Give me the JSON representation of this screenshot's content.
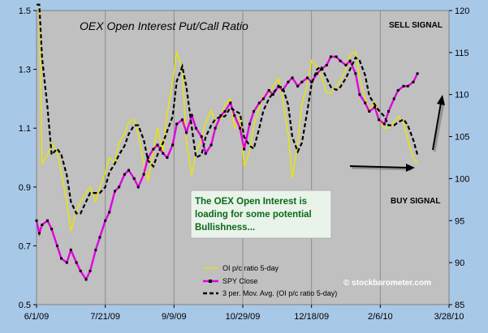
{
  "chart_data": {
    "type": "line",
    "title": "OEX Open Interest Put/Call Ratio",
    "annotations": {
      "sell_signal": "SELL SIGNAL",
      "buy_signal": "BUY SIGNAL",
      "callout_lines": [
        "The OEX Open Interest is",
        "loading for some potential",
        "Bullishness..."
      ],
      "watermark": "© stockbarometer.com"
    },
    "x_tick_labels": [
      "6/1/09",
      "7/21/09",
      "9/9/09",
      "10/29/09",
      "12/18/09",
      "2/6/10",
      "3/28/10"
    ],
    "y_left": {
      "ticks": [
        "0.5",
        "0.7",
        "0.9",
        "1.1",
        "1.3",
        "1.5"
      ],
      "lim": [
        0.5,
        1.5
      ]
    },
    "y_right": {
      "ticks": [
        "85",
        "90",
        "95",
        "100",
        "105",
        "110",
        "115",
        "120"
      ],
      "lim": [
        85,
        120
      ]
    },
    "grid": "vertical",
    "legend_position": "bottom-center",
    "colors": {
      "ratio": "#e8e800",
      "spy": "#e000e0",
      "mavg": "#000000",
      "plot_bg": "#c0c0c0",
      "frame_bg": "#a8c8e8",
      "callout_bg": "#eaf3ea"
    },
    "series": [
      {
        "name": "OI p/c ratio 5-day",
        "axis": "left",
        "x": [
          "6/1/09",
          "6/3/09",
          "6/5/09",
          "6/9/09",
          "6/12/09",
          "6/16/09",
          "6/19/09",
          "6/23/09",
          "6/26/09",
          "6/30/09",
          "7/3/09",
          "7/7/09",
          "7/10/09",
          "7/14/09",
          "7/17/09",
          "7/21/09",
          "7/24/09",
          "7/28/09",
          "7/31/09",
          "8/4/09",
          "8/7/09",
          "8/11/09",
          "8/14/09",
          "8/18/09",
          "8/21/09",
          "8/25/09",
          "8/28/09",
          "9/1/09",
          "9/4/09",
          "9/8/09",
          "9/11/09",
          "9/15/09",
          "9/18/09",
          "9/22/09",
          "9/25/09",
          "9/29/09",
          "10/2/09",
          "10/6/09",
          "10/9/09",
          "10/13/09",
          "10/16/09",
          "10/20/09",
          "10/23/09",
          "10/27/09",
          "10/30/09",
          "11/3/09",
          "11/6/09",
          "11/10/09",
          "11/13/09",
          "11/17/09",
          "11/20/09",
          "11/24/09",
          "11/27/09",
          "12/1/09",
          "12/4/09",
          "12/8/09",
          "12/11/09",
          "12/15/09",
          "12/18/09",
          "12/22/09",
          "12/25/09",
          "12/29/09",
          "1/1/10",
          "1/5/10",
          "1/8/10",
          "1/12/10",
          "1/15/10",
          "1/19/10",
          "1/22/10",
          "1/26/10",
          "1/29/10",
          "2/2/10",
          "2/5/10",
          "2/9/10",
          "2/12/10",
          "2/16/10",
          "2/19/10",
          "2/23/10",
          "2/26/10",
          "3/2/10",
          "3/5/10"
        ],
        "values": [
          1.52,
          1.52,
          0.98,
          1.01,
          1.05,
          1.02,
          0.95,
          0.85,
          0.75,
          0.82,
          0.85,
          0.88,
          0.9,
          0.85,
          0.9,
          0.95,
          1.0,
          0.98,
          1.05,
          1.08,
          1.12,
          1.13,
          1.08,
          0.98,
          0.92,
          1.02,
          1.1,
          1.02,
          1.15,
          1.26,
          1.36,
          1.3,
          1.05,
          0.94,
          1.02,
          1.06,
          1.12,
          1.16,
          1.12,
          1.13,
          1.18,
          1.2,
          1.1,
          1.14,
          0.97,
          1.02,
          1.11,
          1.17,
          1.21,
          1.22,
          1.24,
          1.27,
          1.2,
          1.08,
          0.93,
          1.05,
          1.18,
          1.25,
          1.33,
          1.31,
          1.28,
          1.22,
          1.22,
          1.24,
          1.26,
          1.3,
          1.35,
          1.36,
          1.27,
          1.2,
          1.16,
          1.19,
          1.13,
          1.1,
          1.1,
          1.12,
          1.14,
          1.12,
          1.06,
          1.0,
          0.98
        ]
      },
      {
        "name": "SPY Close",
        "axis": "right",
        "x": [
          "6/1/09",
          "6/3/09",
          "6/5/09",
          "6/9/09",
          "6/12/09",
          "6/16/09",
          "6/19/09",
          "6/23/09",
          "6/26/09",
          "6/30/09",
          "7/3/09",
          "7/7/09",
          "7/10/09",
          "7/14/09",
          "7/17/09",
          "7/21/09",
          "7/24/09",
          "7/28/09",
          "7/31/09",
          "8/4/09",
          "8/7/09",
          "8/11/09",
          "8/14/09",
          "8/18/09",
          "8/21/09",
          "8/25/09",
          "8/28/09",
          "9/1/09",
          "9/4/09",
          "9/8/09",
          "9/11/09",
          "9/15/09",
          "9/18/09",
          "9/22/09",
          "9/25/09",
          "9/29/09",
          "10/2/09",
          "10/6/09",
          "10/9/09",
          "10/13/09",
          "10/16/09",
          "10/20/09",
          "10/23/09",
          "10/27/09",
          "10/30/09",
          "11/3/09",
          "11/6/09",
          "11/10/09",
          "11/13/09",
          "11/17/09",
          "11/20/09",
          "11/24/09",
          "11/27/09",
          "12/1/09",
          "12/4/09",
          "12/8/09",
          "12/11/09",
          "12/15/09",
          "12/18/09",
          "12/22/09",
          "12/25/09",
          "12/29/09",
          "1/1/10",
          "1/5/10",
          "1/8/10",
          "1/12/10",
          "1/15/10",
          "1/19/10",
          "1/22/10",
          "1/26/10",
          "1/29/10",
          "2/2/10",
          "2/5/10",
          "2/9/10",
          "2/12/10",
          "2/16/10",
          "2/19/10",
          "2/23/10",
          "2/26/10",
          "3/2/10",
          "3/5/10"
        ],
        "values": [
          95.0,
          93.5,
          94.5,
          95.0,
          94.0,
          92.0,
          90.5,
          90.0,
          91.5,
          90.0,
          89.0,
          88.0,
          89.0,
          91.5,
          93.0,
          95.0,
          96.0,
          98.5,
          99.0,
          100.5,
          101.0,
          100.0,
          99.0,
          100.5,
          102.5,
          103.5,
          104.0,
          103.0,
          102.5,
          104.0,
          106.5,
          107.0,
          105.5,
          107.5,
          106.0,
          105.0,
          103.0,
          104.0,
          106.0,
          107.5,
          108.0,
          109.0,
          107.5,
          106.0,
          103.5,
          106.5,
          108.0,
          109.0,
          109.5,
          110.5,
          110.0,
          111.0,
          110.5,
          111.5,
          112.0,
          111.0,
          111.5,
          112.0,
          111.5,
          112.5,
          113.0,
          113.5,
          114.5,
          114.5,
          114.0,
          113.5,
          114.0,
          112.5,
          110.0,
          109.0,
          108.0,
          108.5,
          107.0,
          106.5,
          108.0,
          109.5,
          110.5,
          111.0,
          111.0,
          111.5,
          112.5
        ]
      },
      {
        "name": "3 per. Mov. Avg. (OI p/c ratio 5-day)",
        "axis": "left",
        "x": [
          "6/1/09",
          "6/3/09",
          "6/5/09",
          "6/9/09",
          "6/12/09",
          "6/16/09",
          "6/19/09",
          "6/23/09",
          "6/26/09",
          "6/30/09",
          "7/3/09",
          "7/7/09",
          "7/10/09",
          "7/14/09",
          "7/17/09",
          "7/21/09",
          "7/24/09",
          "7/28/09",
          "7/31/09",
          "8/4/09",
          "8/7/09",
          "8/11/09",
          "8/14/09",
          "8/18/09",
          "8/21/09",
          "8/25/09",
          "8/28/09",
          "9/1/09",
          "9/4/09",
          "9/8/09",
          "9/11/09",
          "9/15/09",
          "9/18/09",
          "9/22/09",
          "9/25/09",
          "9/29/09",
          "10/2/09",
          "10/6/09",
          "10/9/09",
          "10/13/09",
          "10/16/09",
          "10/20/09",
          "10/23/09",
          "10/27/09",
          "10/30/09",
          "11/3/09",
          "11/6/09",
          "11/10/09",
          "11/13/09",
          "11/17/09",
          "11/20/09",
          "11/24/09",
          "11/27/09",
          "12/1/09",
          "12/4/09",
          "12/8/09",
          "12/11/09",
          "12/15/09",
          "12/18/09",
          "12/22/09",
          "12/25/09",
          "12/29/09",
          "1/1/10",
          "1/5/10",
          "1/8/10",
          "1/12/10",
          "1/15/10",
          "1/19/10",
          "1/22/10",
          "1/26/10",
          "1/29/10",
          "2/2/10",
          "2/5/10",
          "2/9/10",
          "2/12/10",
          "2/16/10",
          "2/19/10",
          "2/23/10",
          "2/26/10",
          "3/2/10",
          "3/5/10"
        ],
        "values": [
          1.52,
          1.52,
          1.34,
          1.17,
          1.01,
          1.03,
          1.01,
          0.94,
          0.85,
          0.81,
          0.81,
          0.85,
          0.88,
          0.88,
          0.88,
          0.9,
          0.95,
          0.98,
          1.01,
          1.04,
          1.08,
          1.11,
          1.11,
          1.06,
          0.99,
          0.97,
          1.01,
          1.05,
          1.09,
          1.14,
          1.26,
          1.31,
          1.24,
          1.1,
          1.0,
          1.01,
          1.07,
          1.11,
          1.13,
          1.14,
          1.14,
          1.17,
          1.16,
          1.15,
          1.07,
          1.04,
          1.03,
          1.1,
          1.16,
          1.2,
          1.22,
          1.24,
          1.24,
          1.18,
          1.07,
          1.02,
          1.05,
          1.16,
          1.25,
          1.3,
          1.31,
          1.27,
          1.24,
          1.23,
          1.24,
          1.27,
          1.3,
          1.34,
          1.33,
          1.28,
          1.21,
          1.18,
          1.16,
          1.14,
          1.11,
          1.11,
          1.12,
          1.13,
          1.11,
          1.06,
          1.01
        ]
      }
    ]
  }
}
